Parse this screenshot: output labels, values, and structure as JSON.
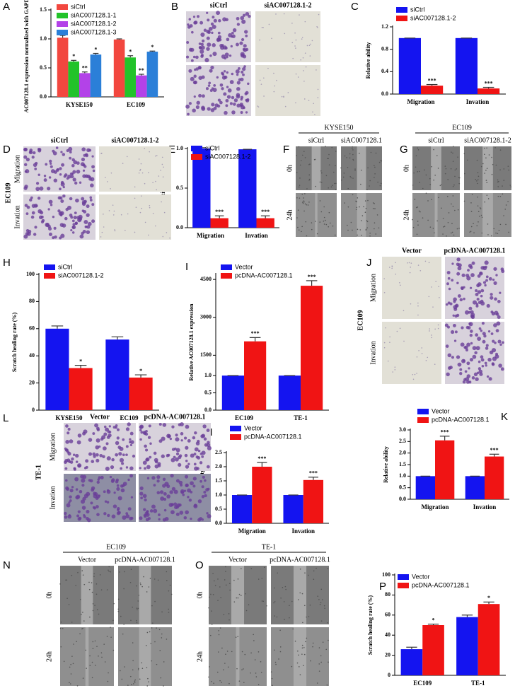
{
  "chart_data": [
    {
      "panel": "A",
      "type": "bar",
      "ylabel": "AC007128.1 expression normalized with GAPDH",
      "categories": [
        "KYSE150",
        "EC109"
      ],
      "series": [
        {
          "name": "siCtrl",
          "color": "#f2473f",
          "values": [
            1.02,
            0.99
          ],
          "errors": [
            0.04,
            0.01
          ]
        },
        {
          "name": "siAC007128.1-1",
          "color": "#22c32a",
          "values": [
            0.61,
            0.68
          ],
          "errors": [
            0.02,
            0.03
          ],
          "significance": [
            "*",
            "*"
          ]
        },
        {
          "name": "siAC007128.1-2",
          "color": "#b342e8",
          "values": [
            0.41,
            0.37
          ],
          "errors": [
            0.02,
            0.02
          ],
          "significance": [
            "**",
            "**"
          ]
        },
        {
          "name": "siAC007128.1-3",
          "color": "#2b7fd8",
          "values": [
            0.73,
            0.78
          ],
          "errors": [
            0.02,
            0.01
          ],
          "significance": [
            "*",
            "*"
          ]
        }
      ],
      "ylim": [
        0,
        1.5
      ],
      "yticks": [
        {
          "value": 0,
          "label": "0.0"
        },
        {
          "value": 0.5,
          "label": "0.5"
        },
        {
          "value": 1,
          "label": "1.0"
        },
        {
          "value": 1.5,
          "label": "1.5"
        }
      ]
    },
    {
      "panel": "C",
      "type": "bar",
      "ylabel": "Relative ability",
      "categories": [
        "Migration",
        "Invation"
      ],
      "series": [
        {
          "name": "siCtrl",
          "color": "#1414f0",
          "values": [
            1,
            1
          ],
          "errors": [
            0,
            0
          ]
        },
        {
          "name": "siAC007128.1-2",
          "color": "#f01414",
          "values": [
            0.15,
            0.1
          ],
          "errors": [
            0.02,
            0.02
          ],
          "significance": [
            "***",
            "***"
          ]
        }
      ],
      "ylim": [
        0,
        1.2
      ],
      "yticks": [
        {
          "value": 0,
          "label": "0.0"
        },
        0.4,
        0.8,
        {
          "value": 1.2,
          "label": "1.2"
        }
      ]
    },
    {
      "panel": "E",
      "type": "bar",
      "ylabel": "Relative ability",
      "categories": [
        "Migration",
        "Invation"
      ],
      "series": [
        {
          "name": "siCtrl",
          "color": "#1414f0",
          "values": [
            1,
            0.99
          ],
          "errors": [
            0.01,
            0
          ]
        },
        {
          "name": "siAC007128.1-2",
          "color": "#f01414",
          "values": [
            0.12,
            0.12
          ],
          "errors": [
            0.03,
            0.03
          ],
          "significance": [
            "***",
            "***"
          ]
        }
      ],
      "ylim": [
        0,
        1
      ],
      "yticks": [
        {
          "value": 0,
          "label": "0.0"
        },
        0.5,
        {
          "value": 1,
          "label": "1.0"
        }
      ]
    },
    {
      "panel": "H",
      "type": "bar",
      "ylabel": "Scratch healing rate (%)",
      "categories": [
        "KYSE150",
        "EC109"
      ],
      "series": [
        {
          "name": "siCtrl",
          "color": "#1414f0",
          "values": [
            60,
            52
          ],
          "errors": [
            2,
            2
          ]
        },
        {
          "name": "siAC007128.1-2",
          "color": "#f01414",
          "values": [
            31,
            24
          ],
          "errors": [
            2,
            2
          ],
          "significance": [
            "*",
            "*"
          ]
        }
      ],
      "ylim": [
        0,
        100
      ],
      "yticks": [
        0,
        20,
        40,
        60,
        80,
        100
      ]
    },
    {
      "panel": "I",
      "type": "bar",
      "ylabel": "Relative AC007128.1 expression",
      "categories": [
        "EC109",
        "TE-1"
      ],
      "series": [
        {
          "name": "Vector",
          "color": "#1414f0",
          "values": [
            1,
            1
          ],
          "errors": [
            0,
            0
          ]
        },
        {
          "name": "pcDNA-AC007128.1",
          "color": "#f01414",
          "values": [
            2050,
            4250
          ],
          "errors": [
            150,
            200
          ],
          "significance": [
            "***",
            "***"
          ]
        }
      ],
      "ylim_segments": [
        [
          0,
          1.1
        ],
        [
          1000,
          4700
        ]
      ],
      "yticks": [
        {
          "value": 0,
          "label": "0.0"
        },
        {
          "value": 0.5,
          "label": "0.5"
        },
        {
          "value": 1,
          "label": "1.0"
        },
        1500,
        3000,
        4500
      ]
    },
    {
      "panel": "M",
      "type": "bar",
      "ylabel": "Relative ability",
      "categories": [
        "Migration",
        "Invation"
      ],
      "series": [
        {
          "name": "Vector",
          "color": "#1414f0",
          "values": [
            1,
            1
          ],
          "errors": [
            0,
            0
          ]
        },
        {
          "name": "pcDNA-AC007128.1",
          "color": "#f01414",
          "values": [
            2,
            1.53
          ],
          "errors": [
            0.15,
            0.1
          ],
          "significance": [
            "***",
            "***"
          ]
        }
      ],
      "ylim": [
        0,
        2.5
      ],
      "yticks": [
        {
          "value": 0,
          "label": "0.0"
        },
        0.5,
        {
          "value": 1,
          "label": "1.0"
        },
        1.5,
        {
          "value": 2,
          "label": "2.0"
        },
        2.5
      ]
    },
    {
      "panel": "K",
      "type": "bar",
      "ylabel": "Relative ability",
      "categories": [
        "Migration",
        "Invation"
      ],
      "series": [
        {
          "name": "Vector",
          "color": "#1414f0",
          "values": [
            1,
            1
          ],
          "errors": [
            0,
            0
          ]
        },
        {
          "name": "pcDNA-AC007128.1",
          "color": "#f01414",
          "values": [
            2.55,
            1.85
          ],
          "errors": [
            0.18,
            0.1
          ],
          "significance": [
            "***",
            "***"
          ]
        }
      ],
      "ylim": [
        0,
        3
      ],
      "yticks": [
        {
          "value": 0,
          "label": "0.0"
        },
        0.5,
        {
          "value": 1,
          "label": "1.0"
        },
        1.5,
        {
          "value": 2,
          "label": "2.0"
        },
        2.5,
        {
          "value": 3,
          "label": "3.0"
        }
      ]
    },
    {
      "panel": "P",
      "type": "bar",
      "ylabel": "Scratch healing rate (%)",
      "categories": [
        "EC109",
        "TE-1"
      ],
      "series": [
        {
          "name": "Vector",
          "color": "#1414f0",
          "values": [
            26,
            58
          ],
          "errors": [
            2,
            2
          ]
        },
        {
          "name": "pcDNA-AC007128.1",
          "color": "#f01414",
          "values": [
            50,
            71
          ],
          "errors": [
            1,
            2
          ],
          "significance": [
            "*",
            "*"
          ]
        }
      ],
      "ylim": [
        0,
        100
      ],
      "yticks": [
        0,
        20,
        40,
        60,
        80,
        100
      ]
    }
  ],
  "image_panels": [
    {
      "panel": "B",
      "columns": [
        "siCtrl",
        "siAC007128.1-2"
      ]
    },
    {
      "panel": "D",
      "side": "EC109",
      "columns": [
        "siCtrl",
        "siAC007128.1-2"
      ],
      "rows": [
        "Migration",
        "Invation"
      ]
    },
    {
      "panel": "F",
      "group": "KYSE150",
      "columns": [
        "siCtrl",
        "siAC007128.1"
      ],
      "rows": [
        "0h",
        "24h"
      ]
    },
    {
      "panel": "G",
      "group": "EC109",
      "columns": [
        "siCtrl",
        "siAC007128.1-2"
      ],
      "rows": [
        "0h",
        "24h"
      ]
    },
    {
      "panel": "J",
      "side": "EC109",
      "columns": [
        "Vector",
        "pcDNA-AC007128.1"
      ],
      "rows": [
        "Migration",
        "Invation"
      ]
    },
    {
      "panel": "L",
      "side": "TE-1",
      "columns": [
        "Vector",
        "pcDNA-AC007128.1"
      ],
      "rows": [
        "Migration",
        "Invation"
      ]
    },
    {
      "panel": "N",
      "group": "EC109",
      "columns": [
        "Vector",
        "pcDNA-AC007128.1"
      ],
      "rows": [
        "0h",
        "24h"
      ]
    },
    {
      "panel": "O",
      "group": "TE-1",
      "columns": [
        "Vector",
        "pcDNA-AC007128.1"
      ],
      "rows": [
        "0h",
        "24h"
      ]
    }
  ]
}
